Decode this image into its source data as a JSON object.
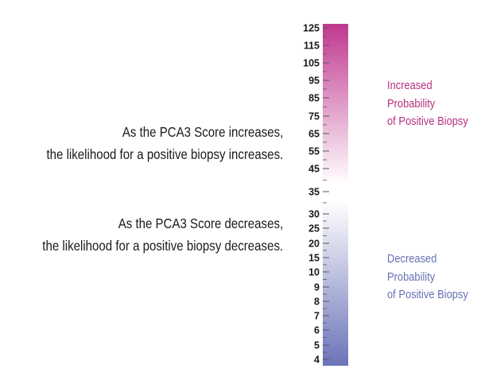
{
  "statements": {
    "increase": [
      "As the PCA3 Score increases,",
      "the likelihood for a positive biopsy increases."
    ],
    "decrease": [
      "As the PCA3 Score decreases,",
      "the likelihood for a positive biopsy decreases."
    ]
  },
  "scale": {
    "labels": [
      "125",
      "115",
      "105",
      "95",
      "85",
      "75",
      "65",
      "55",
      "45",
      "35",
      "30",
      "25",
      "20",
      "15",
      "10",
      "9",
      "8",
      "7",
      "6",
      "5",
      "4"
    ],
    "colors": {
      "top": "#c0388f",
      "middle": "#ffffff",
      "bottom": "#6b73b8",
      "tick": "#555555"
    }
  },
  "probability": {
    "increased": {
      "lines": [
        "Increased",
        "Probability",
        "of Positive Biopsy"
      ],
      "color": "#b5307e"
    },
    "decreased": {
      "lines": [
        "Decreased",
        "Probability",
        "of Positive Biopsy"
      ],
      "color": "#6670b2"
    }
  }
}
